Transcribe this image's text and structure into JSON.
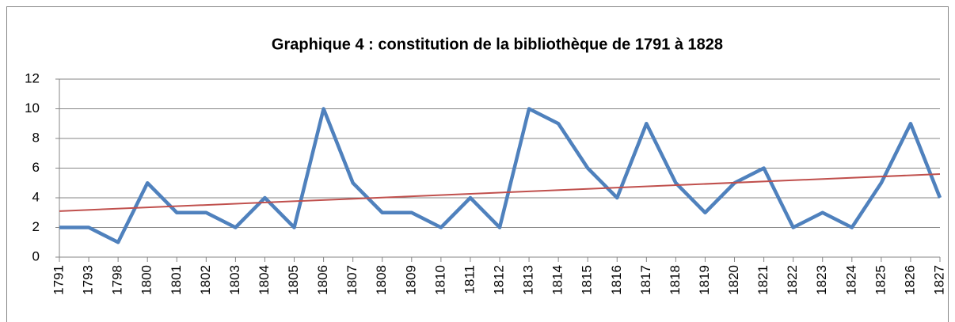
{
  "chart_data": {
    "type": "line",
    "title": "Graphique 4 : constitution de la bibliothèque de 1791 à 1828",
    "categories": [
      "1791",
      "1793",
      "1798",
      "1800",
      "1801",
      "1802",
      "1803",
      "1804",
      "1805",
      "1806",
      "1807",
      "1808",
      "1809",
      "1810",
      "1811",
      "1812",
      "1813",
      "1814",
      "1815",
      "1816",
      "1817",
      "1818",
      "1819",
      "1820",
      "1821",
      "1822",
      "1823",
      "1824",
      "1825",
      "1826",
      "1827"
    ],
    "values": [
      2,
      2,
      1,
      5,
      3,
      3,
      2,
      4,
      2,
      10,
      5,
      3,
      3,
      2,
      4,
      2,
      10,
      9,
      6,
      4,
      9,
      5,
      3,
      5,
      6,
      2,
      3,
      2,
      5,
      9,
      4
    ],
    "color": "#4f81bd",
    "trendline": {
      "color": "#c0504d",
      "values": [
        3.1,
        5.6
      ]
    },
    "ylim": [
      0,
      12
    ],
    "yticks": [
      0,
      2,
      4,
      6,
      8,
      10,
      12
    ],
    "grid": true
  }
}
